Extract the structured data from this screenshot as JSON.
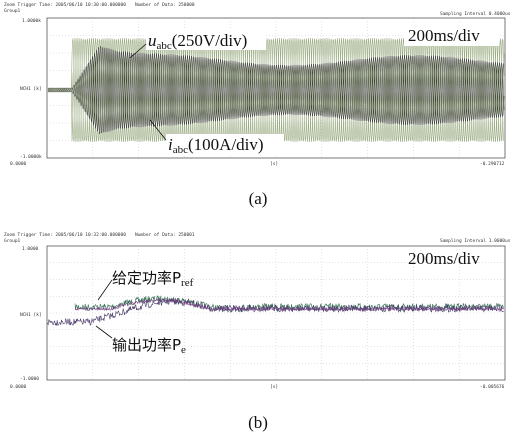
{
  "panel_a": {
    "header": {
      "trigger": "Zoom Trigger Time: 2005/06/10 10:30:00.000000",
      "count": "Number of Data: 250000",
      "group": "Group1",
      "sampling": "Sampling Interval 0.4000us"
    },
    "axis": {
      "top": "1.0000k",
      "bottom": "-1.0000k",
      "channel": "NCH1 [k]",
      "left_time": "0.0000",
      "right_time": "-0.290712",
      "unit": "[s]"
    },
    "voltage_label": {
      "symbol": "u",
      "sub": "abc",
      "scale": "(250V/div)"
    },
    "current_label": {
      "symbol": "i",
      "sub": "abc",
      "scale": "(100A/div)"
    },
    "time_scale": "200ms/div",
    "caption": "(a)"
  },
  "panel_b": {
    "header": {
      "trigger": "Zoom Trigger Time: 2005/06/10 10:32:00.000000",
      "count": "Number of Data: 250001",
      "group": "Group1",
      "sampling": "Sampling Interval 1.0000us"
    },
    "axis": {
      "top": "1.0000",
      "bottom": "-1.0000",
      "channel": "NCH1 [k]",
      "left_time": "0.0000",
      "right_time": "-0.005676",
      "unit": "[s]"
    },
    "ref_label": {
      "text": "给定功率P",
      "sub": "ref"
    },
    "out_label": {
      "text": "输出功率P",
      "sub": "e"
    },
    "time_scale": "200ms/div",
    "caption": "(b)"
  }
}
